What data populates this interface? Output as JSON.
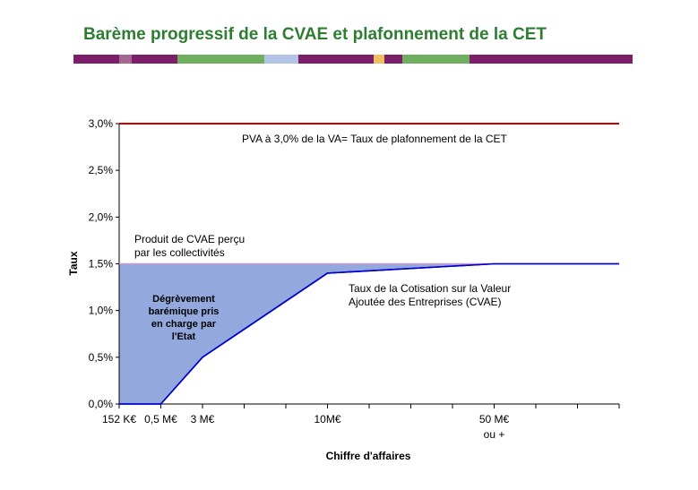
{
  "page": {
    "title": "Barème progressif de la CVAE et plafonnement de la CET",
    "title_color": "#2e7d32",
    "band_segments": [
      {
        "color": "#7b1f6b",
        "weight": 51
      },
      {
        "color": "#a3688f",
        "weight": 14
      },
      {
        "color": "#7b1f6b",
        "weight": 51
      },
      {
        "color": "#6fad5f",
        "weight": 97
      },
      {
        "color": "#b4c4e8",
        "weight": 38
      },
      {
        "color": "#7b1f6b",
        "weight": 84
      },
      {
        "color": "#f0c060",
        "weight": 12
      },
      {
        "color": "#7b1f6b",
        "weight": 20
      },
      {
        "color": "#6fad5f",
        "weight": 75
      },
      {
        "color": "#7b1f6b",
        "weight": 182
      }
    ]
  },
  "chart_data": {
    "type": "line",
    "xlabel": "Chiffre d'affaires",
    "ylabel": "Taux",
    "ylim": [
      0,
      3.0
    ],
    "yticks": [
      {
        "value": 0,
        "label": "0,0%"
      },
      {
        "value": 0.5,
        "label": "0,5%"
      },
      {
        "value": 1.0,
        "label": "1,0%"
      },
      {
        "value": 1.5,
        "label": "1,5%"
      },
      {
        "value": 2.0,
        "label": "2,0%"
      },
      {
        "value": 2.5,
        "label": "2,5%"
      },
      {
        "value": 3.0,
        "label": "3,0%"
      }
    ],
    "x_categories": [
      {
        "label": "152 K€",
        "index": 0
      },
      {
        "label": "0,5 M€",
        "index": 1
      },
      {
        "label": "3 M€",
        "index": 2
      },
      {
        "label": "10M€",
        "index": 5
      },
      {
        "label": "50 M€",
        "label2": "ou +",
        "index": 9
      }
    ],
    "x_slots": 12,
    "series": [
      {
        "role": "cvae_rate",
        "color": "#0000cc",
        "points": [
          [
            0,
            0
          ],
          [
            1,
            0
          ],
          [
            2,
            0.5
          ],
          [
            5,
            1.4
          ],
          [
            9,
            1.5
          ],
          [
            12,
            1.5
          ]
        ]
      },
      {
        "role": "cap_rate",
        "color": "#cc0000",
        "points": [
          [
            0,
            3.0
          ],
          [
            12,
            3.0
          ]
        ]
      },
      {
        "role": "collected_rate",
        "color": "#cc99cc",
        "points": [
          [
            0,
            1.5
          ],
          [
            12,
            1.5
          ]
        ]
      }
    ],
    "area": {
      "color": "#93a9dd",
      "upper": 1.5,
      "from_index": 0,
      "to_index": 9
    },
    "annotations": {
      "cap": "PVA à 3,0% de la VA= Taux de plafonnement de la CET",
      "collected": [
        "Produit de CVAE perçu",
        "par les collectivités"
      ],
      "relief": [
        "Dégrèvement",
        "barémique pris",
        "en charge par",
        "l'Etat"
      ],
      "rate": [
        "Taux de la Cotisation sur la Valeur",
        "Ajoutée des Entreprises (CVAE)"
      ]
    }
  }
}
